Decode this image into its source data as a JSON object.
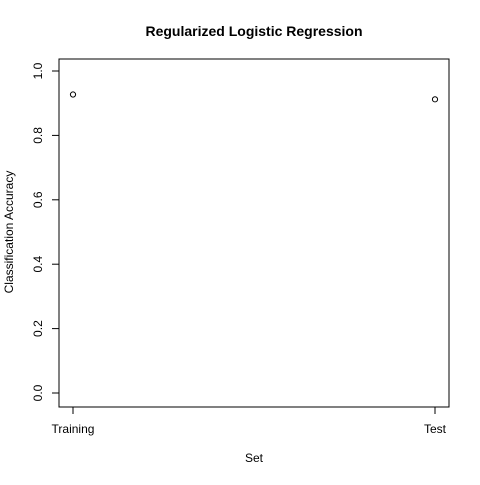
{
  "chart_data": {
    "type": "scatter",
    "title": "Regularized Logistic Regression",
    "xlabel": "Set",
    "ylabel": "Classification Accuracy",
    "categories": [
      "Training",
      "Test"
    ],
    "values": [
      0.927,
      0.912
    ],
    "ylim": [
      0,
      1
    ],
    "yticks": [
      "0.0",
      "0.2",
      "0.4",
      "0.6",
      "0.8",
      "1.0"
    ],
    "grid": false,
    "legend": "none",
    "marker": "open-circle",
    "colors": {
      "point": "#000000",
      "axis": "#000000",
      "background": "#ffffff"
    }
  }
}
